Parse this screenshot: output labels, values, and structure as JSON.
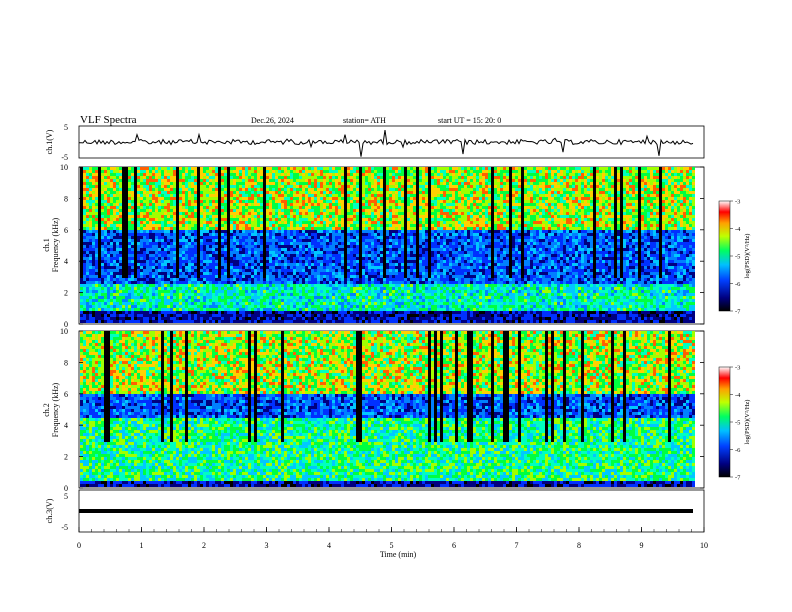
{
  "header": {
    "title": "VLF  Spectra",
    "date": "Dec.26, 2024",
    "station": "station= ATH",
    "start": "start  UT  =    15: 20: 0"
  },
  "chart_data": [
    {
      "type": "line",
      "ylabel": "ch.1(V)",
      "ylim": [
        -5,
        5
      ],
      "yticks": [
        "5",
        "-5"
      ],
      "xlim": [
        0,
        10
      ],
      "description_series": "waveform, mostly near 0 V with short spikes",
      "series": [
        {
          "name": "ch.1",
          "baseline": 0
        }
      ]
    },
    {
      "type": "heatmap",
      "ylabel": "ch.1\nFrequency (kHz)",
      "ylim": [
        0,
        10
      ],
      "yticks": [
        "0",
        "2",
        "4",
        "6",
        "8",
        "10"
      ],
      "xlim": [
        0,
        10
      ],
      "colorbar": {
        "label": "log(PSD)(V²/Hz)",
        "ticks": [
          "-3",
          "-4",
          "-5",
          "-6",
          "-7"
        ],
        "range": [
          -7,
          -3
        ]
      }
    },
    {
      "type": "heatmap",
      "ylabel": "ch.2\nFrequency (kHz)",
      "ylim": [
        0,
        10
      ],
      "yticks": [
        "0",
        "2",
        "4",
        "6",
        "8",
        "10"
      ],
      "xlim": [
        0,
        10
      ],
      "colorbar": {
        "label": "log(PSD)(V²/Hz)",
        "ticks": [
          "-3",
          "-4",
          "-5",
          "-6",
          "-7"
        ],
        "range": [
          -7,
          -3
        ]
      }
    },
    {
      "type": "line",
      "ylabel": "ch.3(V)",
      "ylim": [
        -5,
        5
      ],
      "yticks": [
        "5",
        "-5"
      ],
      "xlim": [
        0,
        10
      ],
      "xlabel": "Time  (min)",
      "xticks": [
        "0",
        "1",
        "2",
        "3",
        "4",
        "5",
        "6",
        "7",
        "8",
        "9",
        "10"
      ],
      "series": [
        {
          "name": "ch.3",
          "baseline": 0
        }
      ]
    }
  ],
  "labels": {
    "ch1_axis": "ch.1(V)",
    "ch2_axis_a": "ch.1",
    "ch2_axis_b": "Frequency (kHz)",
    "ch3_axis_a": "ch.2",
    "ch3_axis_b": "Frequency (kHz)",
    "ch4_axis": "ch.3(V)",
    "xlabel": "Time  (min)",
    "cbar_label": "log(PSD)(V²/Hz)"
  }
}
